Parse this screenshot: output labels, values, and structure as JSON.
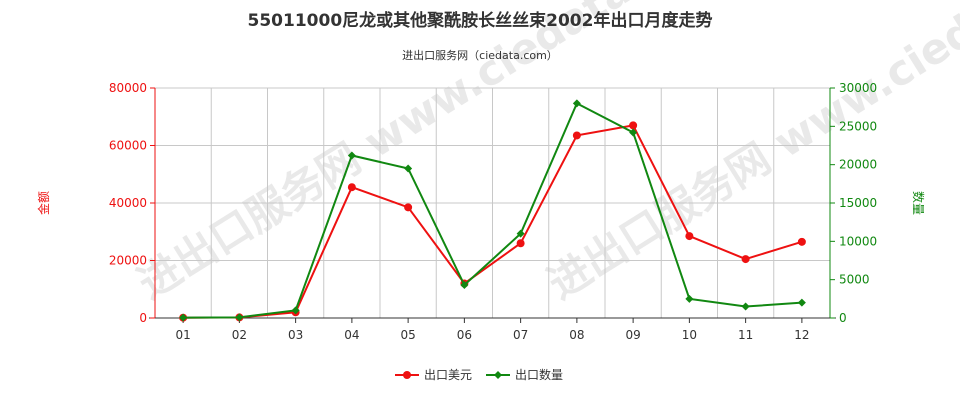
{
  "title": "55011000尼龙或其他聚酰胺长丝丝束2002年出口月度走势",
  "subtitle": "进出口服务网（ciedata.com）",
  "watermark": "进出口服务网 www.ciedata.com",
  "colors": {
    "amount": "#ee1111",
    "quantity": "#118811",
    "grid": "#c8c8c8",
    "axis": "#333333"
  },
  "chart_data": {
    "type": "line",
    "categories": [
      "01",
      "02",
      "03",
      "04",
      "05",
      "06",
      "07",
      "08",
      "09",
      "10",
      "11",
      "12"
    ],
    "left_axis": {
      "label": "金额",
      "ylim": [
        0,
        80000
      ],
      "ticks": [
        0,
        20000,
        40000,
        60000,
        80000
      ]
    },
    "right_axis": {
      "label": "数量",
      "ylim": [
        0,
        30000
      ],
      "ticks": [
        0,
        5000,
        10000,
        15000,
        20000,
        25000,
        30000
      ]
    },
    "grid": true,
    "legend_position": "bottom-center",
    "series": [
      {
        "name": "出口美元",
        "axis": "left",
        "color": "#ee1111",
        "values": [
          100,
          200,
          2000,
          45500,
          38500,
          12000,
          26000,
          63500,
          67000,
          28500,
          20500,
          26500
        ]
      },
      {
        "name": "出口数量",
        "axis": "right",
        "color": "#118811",
        "values": [
          50,
          80,
          1000,
          21200,
          19500,
          4300,
          11000,
          28000,
          24200,
          2500,
          1500,
          2000
        ]
      }
    ]
  }
}
